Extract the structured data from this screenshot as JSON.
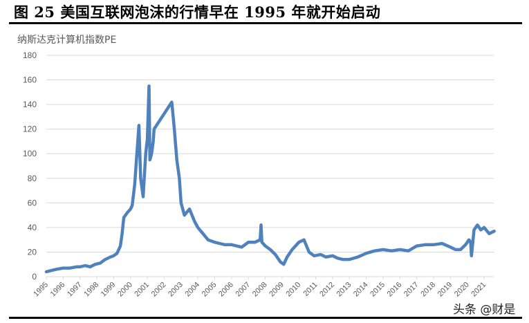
{
  "figure": {
    "title": "图 25 美国互联网泡沫的行情早在 1995 年就开始启动",
    "watermark": "头条 @财是"
  },
  "chart_data": {
    "type": "line",
    "title": "美国互联网泡沫的行情早在 1995 年就开始启动",
    "ylabel": "纳斯达克计算机指数PE",
    "xlabel": "",
    "ylim": [
      0,
      180
    ],
    "yticks": [
      0,
      20,
      40,
      60,
      80,
      100,
      120,
      140,
      160,
      180
    ],
    "xticks": [
      "1995",
      "1996",
      "1997",
      "1998",
      "1999",
      "2000",
      "2001",
      "2002",
      "2003",
      "2004",
      "2005",
      "2006",
      "2007",
      "2008",
      "2009",
      "2010",
      "2011",
      "2012",
      "2013",
      "2014",
      "2015",
      "2016",
      "2017",
      "2018",
      "2019",
      "2020",
      "2021"
    ],
    "grid": true,
    "legend": "none",
    "color": "#4f81bd",
    "series": [
      {
        "name": "纳斯达克计算机指数PE",
        "x": [
          1995.0,
          1995.3,
          1995.6,
          1996.0,
          1996.4,
          1996.8,
          1997.0,
          1997.3,
          1997.6,
          1997.9,
          1998.2,
          1998.5,
          1998.8,
          1999.0,
          1999.2,
          1999.4,
          1999.5,
          1999.6,
          1999.8,
          2000.0,
          2000.1,
          2000.25,
          2000.35,
          2000.5,
          2000.6,
          2000.75,
          2000.9,
          2001.0,
          2001.1,
          2001.15,
          2001.25,
          2001.35,
          2001.4,
          2002.45,
          2002.5,
          2002.6,
          2002.75,
          2002.9,
          2003.0,
          2003.2,
          2003.5,
          2003.8,
          2004.0,
          2004.3,
          2004.6,
          2005.0,
          2005.3,
          2005.6,
          2006.0,
          2006.3,
          2006.6,
          2007.0,
          2007.4,
          2007.7,
          2007.75,
          2007.8,
          2008.0,
          2008.3,
          2008.6,
          2008.9,
          2009.1,
          2009.3,
          2009.6,
          2010.0,
          2010.3,
          2010.6,
          2010.9,
          2011.3,
          2011.6,
          2012.0,
          2012.3,
          2012.6,
          2013.0,
          2013.5,
          2014.0,
          2014.5,
          2015.0,
          2015.5,
          2016.0,
          2016.5,
          2017.0,
          2017.5,
          2018.0,
          2018.5,
          2019.0,
          2019.3,
          2019.6,
          2019.9,
          2020.1,
          2020.2,
          2020.25,
          2020.4,
          2020.6,
          2020.8,
          2021.0,
          2021.3,
          2021.6
        ],
        "values": [
          4,
          5,
          6,
          7,
          7,
          8,
          8,
          9,
          8,
          10,
          11,
          14,
          16,
          17,
          19,
          25,
          35,
          48,
          52,
          55,
          58,
          75,
          95,
          123,
          80,
          65,
          100,
          112,
          155,
          95,
          100,
          110,
          120,
          142,
          135,
          120,
          95,
          80,
          60,
          50,
          55,
          45,
          40,
          35,
          30,
          28,
          27,
          26,
          26,
          25,
          24,
          28,
          28,
          30,
          42,
          28,
          25,
          22,
          18,
          12,
          10,
          16,
          22,
          28,
          30,
          20,
          17,
          18,
          16,
          17,
          15,
          14,
          14,
          16,
          19,
          21,
          22,
          21,
          22,
          21,
          25,
          26,
          26,
          27,
          24,
          22,
          22,
          26,
          30,
          28,
          17,
          38,
          42,
          38,
          40,
          35,
          37
        ]
      }
    ]
  }
}
